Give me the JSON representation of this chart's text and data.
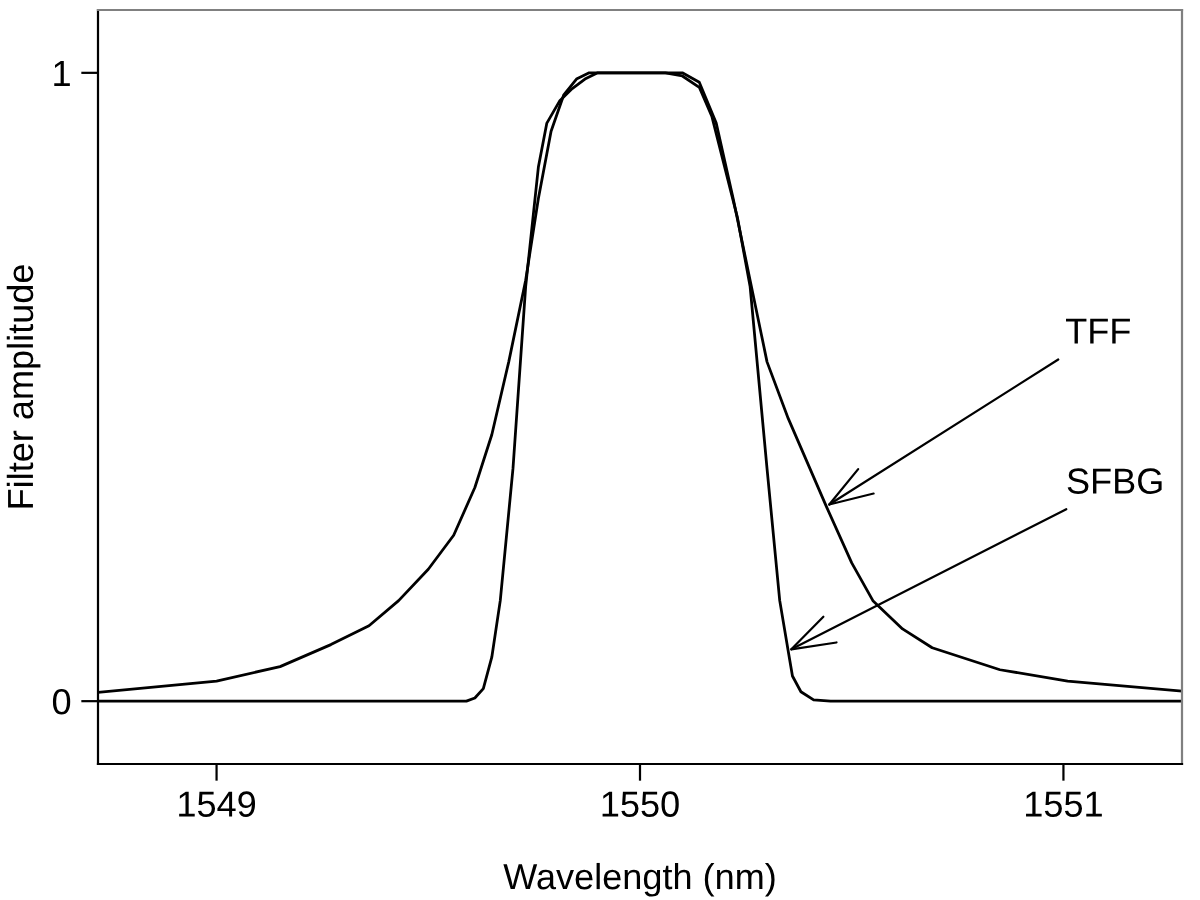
{
  "chart_data": {
    "type": "line",
    "xlabel": "Wavelength (nm)",
    "ylabel": "Filter amplitude",
    "xlim": [
      1548.72,
      1551.28
    ],
    "ylim": [
      -0.1,
      1.1
    ],
    "xticks": [
      1549,
      1550,
      1551
    ],
    "yticks": [
      0,
      1
    ],
    "grid": false,
    "legend": false,
    "marker": "none",
    "line_style": "solid",
    "series": [
      {
        "color": "#000000",
        "x": [
          1548.72,
          1549.0,
          1549.15,
          1549.27,
          1549.36,
          1549.43,
          1549.5,
          1549.56,
          1549.61,
          1549.65,
          1549.69,
          1549.73,
          1549.76,
          1549.79,
          1549.82,
          1549.85,
          1549.88,
          1550.1,
          1550.14,
          1550.18,
          1550.22,
          1550.26,
          1550.3,
          1550.35,
          1550.44,
          1550.5,
          1550.55,
          1550.62,
          1550.69,
          1550.85,
          1551.01,
          1551.28
        ],
        "values": [
          0.014,
          0.032,
          0.055,
          0.09,
          0.12,
          0.16,
          0.21,
          0.264,
          0.34,
          0.424,
          0.54,
          0.67,
          0.8,
          0.907,
          0.965,
          0.99,
          1.0,
          1.0,
          0.985,
          0.92,
          0.8,
          0.67,
          0.54,
          0.45,
          0.31,
          0.22,
          0.16,
          0.115,
          0.085,
          0.05,
          0.032,
          0.016
        ]
      },
      {
        "color": "#000000",
        "x": [
          1548.72,
          1549.59,
          1549.61,
          1549.63,
          1549.65,
          1549.67,
          1549.7,
          1549.73,
          1549.76,
          1549.78,
          1549.81,
          1549.84,
          1549.87,
          1549.9,
          1550.06,
          1550.1,
          1550.14,
          1550.17,
          1550.2,
          1550.23,
          1550.26,
          1550.3,
          1550.33,
          1550.35,
          1550.36,
          1550.38,
          1550.41,
          1550.45,
          1551.28
        ],
        "values": [
          0.0,
          0.0,
          0.005,
          0.02,
          0.07,
          0.16,
          0.37,
          0.66,
          0.85,
          0.92,
          0.955,
          0.975,
          0.99,
          1.0,
          1.0,
          0.995,
          0.977,
          0.93,
          0.85,
          0.77,
          0.66,
          0.37,
          0.16,
          0.08,
          0.04,
          0.015,
          0.002,
          0.0,
          0.0
        ]
      }
    ],
    "annotations": [
      {
        "text": "TFF",
        "x": 1550.44,
        "y": 0.31
      },
      {
        "text": "SFBG",
        "x": 1550.35,
        "y": 0.08
      }
    ]
  }
}
